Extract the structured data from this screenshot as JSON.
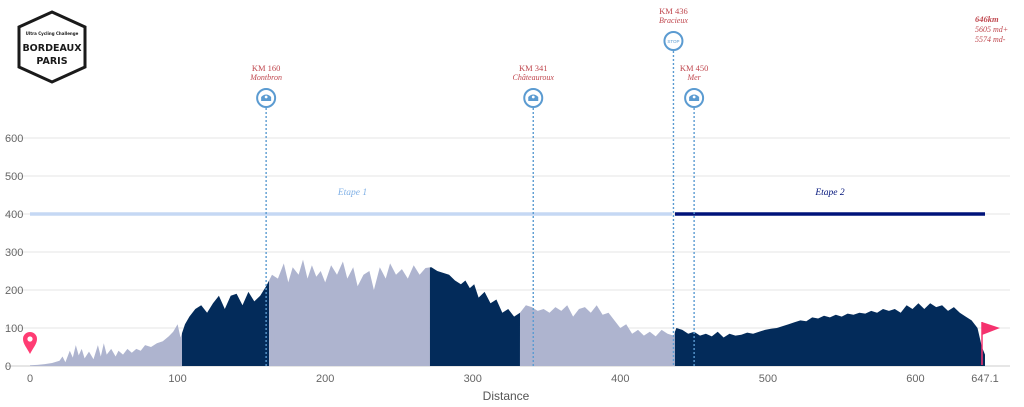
{
  "logo": {
    "line1": "Ultra Cycling Challenge",
    "line2": "BORDEAUX",
    "line3": "PARIS"
  },
  "summary": {
    "distance": "646km",
    "ascent": "5605 md+",
    "descent": "5574 md-"
  },
  "colors": {
    "grey_fill": "#aeb4cf",
    "navy_fill": "#032b5a",
    "stage1": "#c5d8f4",
    "stage2": "#00137a",
    "marker": "#5b9bd1",
    "label": "#c0484f",
    "start_pin": "#ff3c73",
    "finish_flag": "#f5326e"
  },
  "chart_data": {
    "type": "area",
    "xlabel": "Distance",
    "ylabel": "",
    "xlim": [
      0,
      647.1
    ],
    "ylim": [
      0,
      650
    ],
    "x_ticks": [
      "0",
      "100",
      "200",
      "300",
      "400",
      "500",
      "600",
      "647.1"
    ],
    "x_tick_values": [
      0,
      100,
      200,
      300,
      400,
      500,
      600,
      647.1
    ],
    "y_ticks": [
      "0",
      "100",
      "200",
      "300",
      "400",
      "500",
      "600"
    ],
    "y_tick_values": [
      0,
      100,
      200,
      300,
      400,
      500,
      600
    ],
    "grid": true,
    "profile": [
      [
        0,
        2
      ],
      [
        5,
        3
      ],
      [
        10,
        5
      ],
      [
        15,
        8
      ],
      [
        20,
        14
      ],
      [
        22,
        25
      ],
      [
        24,
        10
      ],
      [
        27,
        40
      ],
      [
        29,
        22
      ],
      [
        31,
        55
      ],
      [
        33,
        28
      ],
      [
        35,
        45
      ],
      [
        37,
        20
      ],
      [
        40,
        38
      ],
      [
        43,
        18
      ],
      [
        46,
        55
      ],
      [
        48,
        25
      ],
      [
        50,
        60
      ],
      [
        52,
        30
      ],
      [
        55,
        45
      ],
      [
        58,
        25
      ],
      [
        60,
        40
      ],
      [
        63,
        30
      ],
      [
        66,
        45
      ],
      [
        69,
        35
      ],
      [
        72,
        45
      ],
      [
        75,
        40
      ],
      [
        78,
        55
      ],
      [
        82,
        50
      ],
      [
        86,
        60
      ],
      [
        90,
        65
      ],
      [
        94,
        78
      ],
      [
        97,
        90
      ],
      [
        100,
        110
      ],
      [
        102,
        75
      ],
      [
        105,
        110
      ],
      [
        108,
        130
      ],
      [
        112,
        150
      ],
      [
        116,
        160
      ],
      [
        120,
        140
      ],
      [
        124,
        165
      ],
      [
        128,
        185
      ],
      [
        132,
        150
      ],
      [
        136,
        185
      ],
      [
        140,
        190
      ],
      [
        144,
        160
      ],
      [
        148,
        195
      ],
      [
        152,
        170
      ],
      [
        156,
        185
      ],
      [
        160,
        210
      ],
      [
        164,
        240
      ],
      [
        168,
        230
      ],
      [
        172,
        270
      ],
      [
        175,
        220
      ],
      [
        178,
        260
      ],
      [
        182,
        240
      ],
      [
        185,
        280
      ],
      [
        188,
        230
      ],
      [
        191,
        265
      ],
      [
        194,
        235
      ],
      [
        197,
        250
      ],
      [
        200,
        220
      ],
      [
        204,
        265
      ],
      [
        208,
        240
      ],
      [
        212,
        275
      ],
      [
        215,
        230
      ],
      [
        219,
        260
      ],
      [
        222,
        210
      ],
      [
        226,
        240
      ],
      [
        230,
        250
      ],
      [
        233,
        200
      ],
      [
        237,
        260
      ],
      [
        241,
        230
      ],
      [
        244,
        270
      ],
      [
        248,
        240
      ],
      [
        252,
        255
      ],
      [
        256,
        230
      ],
      [
        260,
        265
      ],
      [
        264,
        240
      ],
      [
        268,
        258
      ],
      [
        272,
        260
      ],
      [
        276,
        250
      ],
      [
        280,
        245
      ],
      [
        284,
        240
      ],
      [
        288,
        225
      ],
      [
        292,
        215
      ],
      [
        295,
        225
      ],
      [
        298,
        205
      ],
      [
        301,
        215
      ],
      [
        304,
        180
      ],
      [
        308,
        195
      ],
      [
        312,
        165
      ],
      [
        316,
        175
      ],
      [
        320,
        140
      ],
      [
        324,
        150
      ],
      [
        328,
        130
      ],
      [
        332,
        140
      ],
      [
        336,
        160
      ],
      [
        340,
        155
      ],
      [
        344,
        145
      ],
      [
        348,
        150
      ],
      [
        352,
        140
      ],
      [
        356,
        155
      ],
      [
        360,
        145
      ],
      [
        364,
        160
      ],
      [
        368,
        130
      ],
      [
        372,
        150
      ],
      [
        376,
        155
      ],
      [
        380,
        140
      ],
      [
        384,
        160
      ],
      [
        388,
        135
      ],
      [
        392,
        140
      ],
      [
        396,
        120
      ],
      [
        400,
        100
      ],
      [
        404,
        110
      ],
      [
        408,
        85
      ],
      [
        412,
        95
      ],
      [
        416,
        80
      ],
      [
        420,
        90
      ],
      [
        424,
        78
      ],
      [
        428,
        95
      ],
      [
        432,
        85
      ],
      [
        436,
        80
      ],
      [
        438,
        100
      ],
      [
        442,
        95
      ],
      [
        446,
        85
      ],
      [
        450,
        90
      ],
      [
        454,
        80
      ],
      [
        458,
        85
      ],
      [
        462,
        78
      ],
      [
        466,
        90
      ],
      [
        470,
        75
      ],
      [
        474,
        85
      ],
      [
        478,
        80
      ],
      [
        482,
        82
      ],
      [
        486,
        88
      ],
      [
        490,
        85
      ],
      [
        494,
        90
      ],
      [
        498,
        95
      ],
      [
        502,
        98
      ],
      [
        506,
        100
      ],
      [
        510,
        105
      ],
      [
        514,
        110
      ],
      [
        518,
        115
      ],
      [
        522,
        120
      ],
      [
        526,
        118
      ],
      [
        530,
        128
      ],
      [
        534,
        125
      ],
      [
        538,
        132
      ],
      [
        542,
        128
      ],
      [
        546,
        135
      ],
      [
        550,
        130
      ],
      [
        554,
        138
      ],
      [
        558,
        135
      ],
      [
        562,
        140
      ],
      [
        566,
        138
      ],
      [
        570,
        145
      ],
      [
        574,
        140
      ],
      [
        578,
        150
      ],
      [
        582,
        145
      ],
      [
        586,
        150
      ],
      [
        590,
        140
      ],
      [
        594,
        160
      ],
      [
        598,
        150
      ],
      [
        602,
        165
      ],
      [
        606,
        150
      ],
      [
        610,
        165
      ],
      [
        614,
        155
      ],
      [
        618,
        160
      ],
      [
        622,
        145
      ],
      [
        626,
        155
      ],
      [
        630,
        140
      ],
      [
        634,
        130
      ],
      [
        638,
        120
      ],
      [
        642,
        100
      ],
      [
        645,
        50
      ],
      [
        647.1,
        30
      ]
    ],
    "segments": [
      {
        "from": 0,
        "to": 103,
        "color": "grey"
      },
      {
        "from": 103,
        "to": 162,
        "color": "navy"
      },
      {
        "from": 162,
        "to": 166,
        "color": "grey"
      },
      {
        "from": 166,
        "to": 271,
        "color": "grey"
      },
      {
        "from": 271,
        "to": 332,
        "color": "navy"
      },
      {
        "from": 332,
        "to": 437,
        "color": "grey"
      },
      {
        "from": 437,
        "to": 647.1,
        "color": "navy"
      }
    ],
    "stages": [
      {
        "name": "Etape 1",
        "from": 0,
        "to": 437,
        "y": 400,
        "color": "stage1"
      },
      {
        "name": "Etape 2",
        "from": 437,
        "to": 647.1,
        "y": 400,
        "color": "stage2"
      }
    ],
    "markers": [
      {
        "km": 160,
        "label": "KM 160",
        "place": "Montbron",
        "icon": "food-icon"
      },
      {
        "km": 341,
        "label": "KM 341",
        "place": "Châteauroux",
        "icon": "food-icon"
      },
      {
        "km": 436,
        "label": "KM 436",
        "place": "Bracieux",
        "icon": "stop-icon",
        "icon_text": "STOP"
      },
      {
        "km": 450,
        "label": "KM 450",
        "place": "Mer",
        "icon": "food-icon"
      }
    ]
  }
}
